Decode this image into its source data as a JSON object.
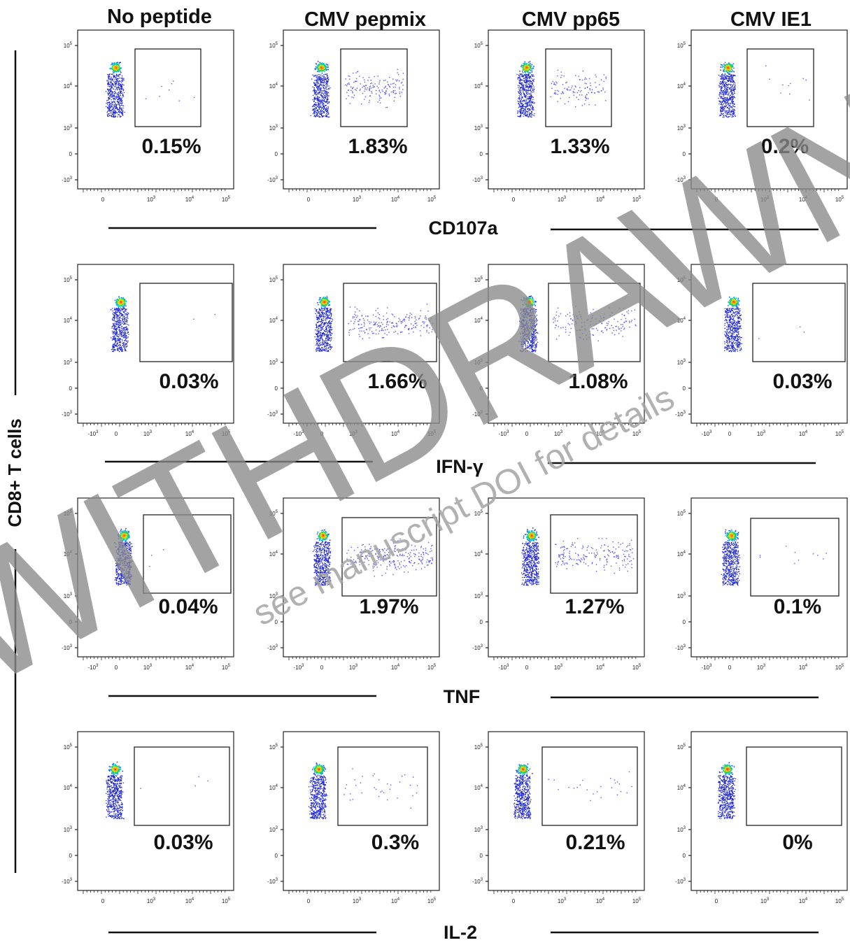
{
  "columns": [
    "No peptide",
    "CMV pepmix",
    "CMV pp65",
    "CMV IE1"
  ],
  "y_axis_label": "CD8+ T cells",
  "rows": [
    {
      "marker": "CD107a",
      "percentages": [
        "0.15%",
        "1.83%",
        "1.33%",
        "0.2%"
      ],
      "x_ticks": [
        "0",
        "10^3",
        "10^4",
        "10^5"
      ],
      "gate_events": [
        8,
        160,
        120,
        10
      ]
    },
    {
      "marker": "IFN-γ",
      "percentages": [
        "0.03%",
        "1.66%",
        "1.08%",
        "0.03%"
      ],
      "x_ticks": [
        "-10^3",
        "0",
        "10^3",
        "10^4",
        "10^5"
      ],
      "gate_events": [
        2,
        220,
        160,
        3
      ]
    },
    {
      "marker": "TNF",
      "percentages": [
        "0.04%",
        "1.97%",
        "1.27%",
        "0.1%"
      ],
      "x_ticks": [
        "-10^3",
        "0",
        "10^3",
        "10^4",
        "10^5"
      ],
      "gate_events": [
        3,
        260,
        190,
        10
      ]
    },
    {
      "marker": "IL-2",
      "percentages": [
        "0.03%",
        "0.3%",
        "0.21%",
        "0%"
      ],
      "x_ticks": [
        "0",
        "10^3",
        "10^4",
        "10^5"
      ],
      "gate_events": [
        4,
        35,
        25,
        0
      ]
    }
  ],
  "y_ticks": [
    "10^5",
    "10^4",
    "10^3",
    "0",
    "-10^3"
  ],
  "watermark": {
    "main": "WITHDRAWN",
    "sub": "see manuscript DOI for details"
  },
  "colors": {
    "text": "#111111",
    "gate_dots": "#3d3df0",
    "watermark": "#8a8a8a"
  }
}
